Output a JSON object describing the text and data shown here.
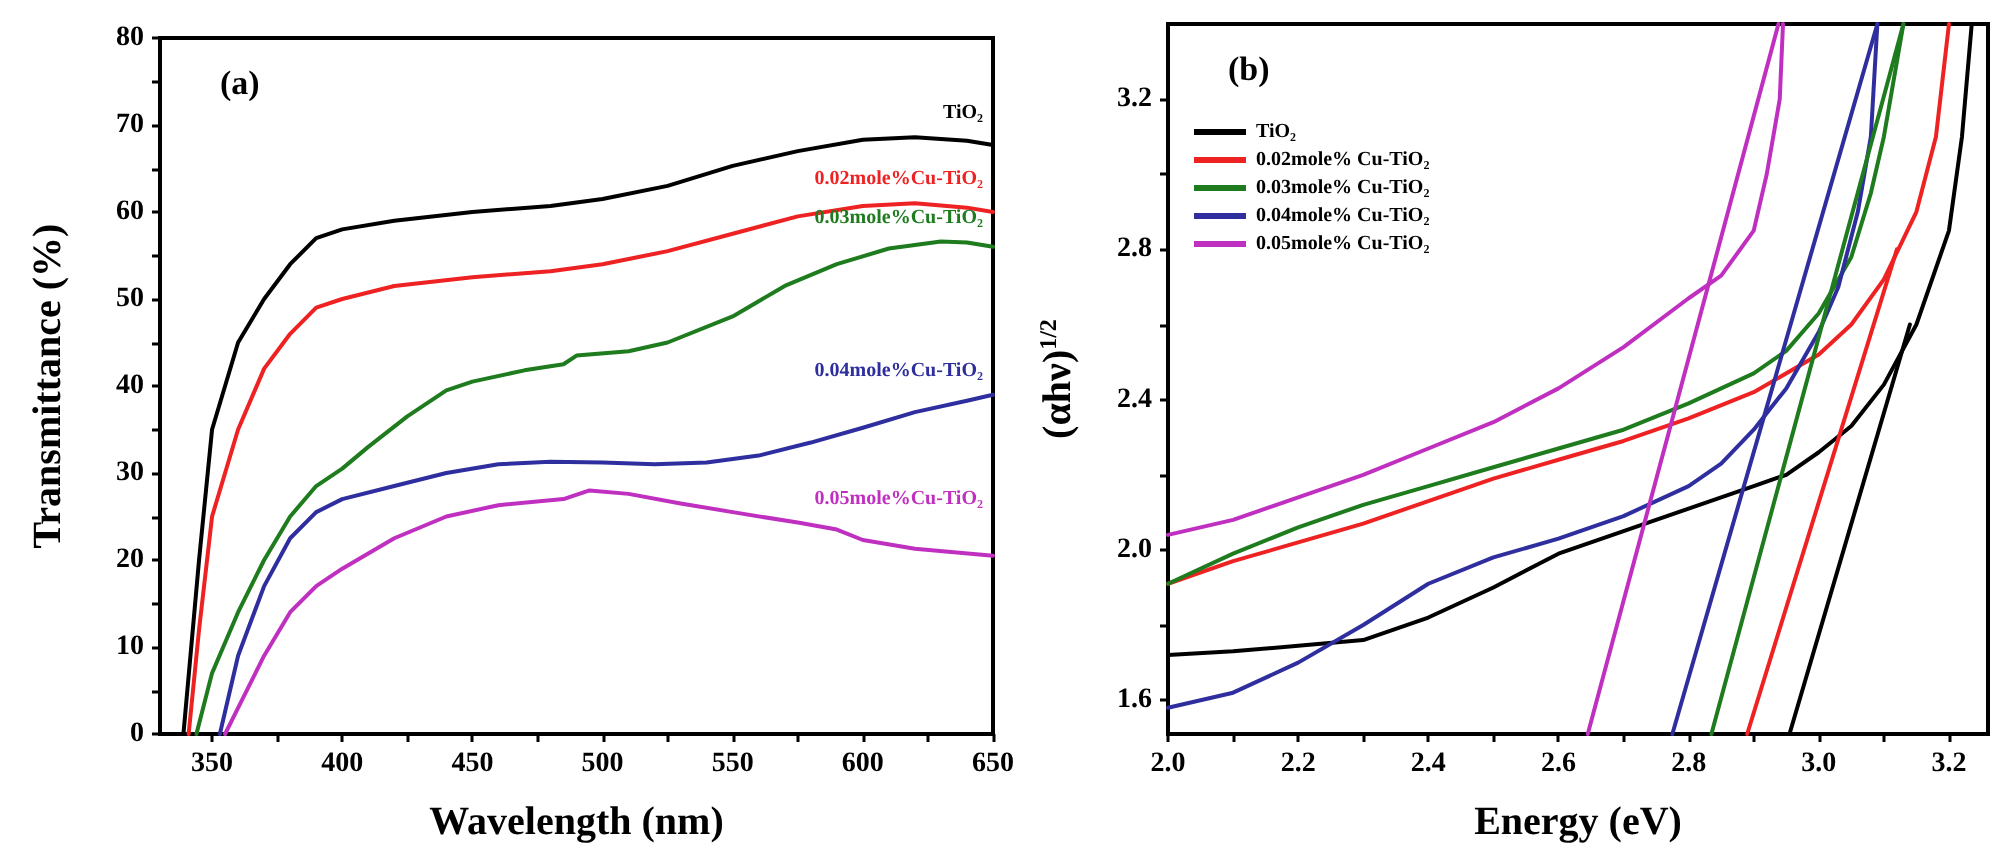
{
  "chart_data": [
    {
      "type": "line",
      "xlabel": "Wavelength (nm)",
      "ylabel": "Transmittance (%)",
      "annotations": [
        "(a)"
      ],
      "legend": false,
      "grid": false,
      "xlim": [
        330,
        650
      ],
      "xticks": [
        350,
        {
          "value": 375,
          "label": null
        },
        400,
        {
          "value": 425,
          "label": null
        },
        450,
        {
          "value": 475,
          "label": null
        },
        500,
        {
          "value": 525,
          "label": null
        },
        550,
        {
          "value": 575,
          "label": null
        },
        600,
        {
          "value": 625,
          "label": null
        },
        650
      ],
      "ylim": [
        0,
        80
      ],
      "yticks": [
        0,
        {
          "value": 5,
          "label": null
        },
        10,
        {
          "value": 15,
          "label": null
        },
        20,
        {
          "value": 25,
          "label": null
        },
        30,
        {
          "value": 35,
          "label": null
        },
        40,
        {
          "value": 45,
          "label": null
        },
        50,
        {
          "value": 55,
          "label": null
        },
        60,
        {
          "value": 65,
          "label": null
        },
        70,
        {
          "value": 75,
          "label": null
        },
        80
      ],
      "series": [
        {
          "name": "TiO₂",
          "color": "#000000",
          "x": [
            339,
            345,
            350,
            360,
            370,
            380,
            390,
            400,
            420,
            450,
            480,
            500,
            525,
            550,
            575,
            600,
            620,
            640,
            650
          ],
          "values": [
            0,
            20,
            35,
            45,
            50,
            54,
            57,
            58,
            59,
            60,
            60.7,
            61.5,
            63,
            65.3,
            67,
            68.3,
            68.6,
            68.2,
            67.7
          ]
        },
        {
          "name": "0.02mole%Cu-TiO₂",
          "color": "#ee2222",
          "x": [
            341,
            345,
            350,
            360,
            370,
            380,
            390,
            400,
            420,
            450,
            480,
            500,
            525,
            550,
            575,
            600,
            620,
            640,
            650
          ],
          "values": [
            0,
            12,
            25,
            35,
            42,
            46,
            49,
            50,
            51.5,
            52.5,
            53.2,
            54,
            55.5,
            57.5,
            59.5,
            60.7,
            61,
            60.5,
            60
          ]
        },
        {
          "name": "0.03mole%Cu-TiO₂",
          "color": "#1e7b1e",
          "x": [
            344,
            350,
            360,
            370,
            380,
            390,
            400,
            410,
            425,
            440,
            450,
            470,
            485,
            490,
            510,
            525,
            550,
            570,
            590,
            610,
            630,
            640,
            650
          ],
          "values": [
            0,
            7,
            14,
            20,
            25,
            28.5,
            30.5,
            33,
            36.5,
            39.5,
            40.5,
            41.8,
            42.5,
            43.5,
            44,
            45,
            48,
            51.5,
            54,
            55.8,
            56.6,
            56.5,
            56
          ]
        },
        {
          "name": "0.04mole%Cu-TiO₂",
          "color": "#2e2e9e",
          "x": [
            353,
            360,
            370,
            380,
            390,
            400,
            420,
            440,
            460,
            480,
            500,
            520,
            540,
            560,
            580,
            600,
            620,
            640,
            650
          ],
          "values": [
            0,
            9,
            17,
            22.5,
            25.5,
            27,
            28.5,
            30,
            31,
            31.3,
            31.2,
            31,
            31.2,
            32,
            33.5,
            35.2,
            37,
            38.3,
            39
          ]
        },
        {
          "name": "0.05mole%Cu-TiO₂",
          "color": "#c030c0",
          "x": [
            355,
            360,
            370,
            380,
            390,
            400,
            420,
            440,
            460,
            485,
            495,
            510,
            530,
            550,
            575,
            590,
            600,
            620,
            650
          ],
          "values": [
            0,
            3,
            9,
            14,
            17,
            19,
            22.5,
            25,
            26.3,
            27,
            28,
            27.6,
            26.5,
            25.5,
            24.3,
            23.5,
            22.3,
            21.3,
            20.5
          ]
        }
      ]
    },
    {
      "type": "line",
      "xlabel": "Energy (eV)",
      "ylabel": "(αhν)$^{1/2}$",
      "annotations": [
        "(b)"
      ],
      "legend": "top left",
      "grid": false,
      "xlim": [
        2.0,
        3.26
      ],
      "xticks": [
        {
          "value": 2.0,
          "label": "2.0"
        },
        {
          "value": 2.1,
          "label": null
        },
        2.2,
        {
          "value": 2.3,
          "label": null
        },
        2.4,
        {
          "value": 2.5,
          "label": null
        },
        2.6,
        {
          "value": 2.7,
          "label": null
        },
        2.8,
        {
          "value": 2.9,
          "label": null
        },
        {
          "value": 3.0,
          "label": "3.0"
        },
        {
          "value": 3.1,
          "label": null
        },
        3.2
      ],
      "ylim": [
        1.51,
        3.4
      ],
      "yticks": [
        1.6,
        {
          "value": 1.8,
          "label": null
        },
        {
          "value": 2.0,
          "label": "2.0"
        },
        {
          "value": 2.2,
          "label": null
        },
        2.4,
        {
          "value": 2.6,
          "label": null
        },
        2.8,
        {
          "value": 3.0,
          "label": null
        },
        3.2
      ],
      "series": [
        {
          "name": "TiO₂",
          "color": "#000000",
          "x": [
            2.0,
            2.1,
            2.2,
            2.3,
            2.4,
            2.5,
            2.6,
            2.7,
            2.8,
            2.9,
            2.95,
            3.0,
            3.05,
            3.1,
            3.15,
            3.2,
            3.22,
            3.235
          ],
          "values": [
            1.72,
            1.73,
            1.745,
            1.76,
            1.82,
            1.9,
            1.99,
            2.05,
            2.11,
            2.17,
            2.2,
            2.26,
            2.33,
            2.44,
            2.6,
            2.85,
            3.1,
            3.4
          ]
        },
        {
          "name": "0.02mole% Cu-TiO₂",
          "color": "#ee2222",
          "x": [
            2.0,
            2.1,
            2.2,
            2.3,
            2.4,
            2.5,
            2.6,
            2.7,
            2.8,
            2.9,
            3.0,
            3.05,
            3.1,
            3.15,
            3.18,
            3.2
          ],
          "values": [
            1.91,
            1.97,
            2.02,
            2.07,
            2.13,
            2.19,
            2.24,
            2.29,
            2.35,
            2.42,
            2.52,
            2.6,
            2.72,
            2.9,
            3.1,
            3.4
          ]
        },
        {
          "name": "0.03mole% Cu-TiO₂",
          "color": "#1e7b1e",
          "x": [
            2.0,
            2.1,
            2.2,
            2.3,
            2.4,
            2.5,
            2.6,
            2.7,
            2.8,
            2.9,
            2.95,
            3.0,
            3.05,
            3.08,
            3.1,
            3.12,
            3.13
          ],
          "values": [
            1.91,
            1.99,
            2.06,
            2.12,
            2.17,
            2.22,
            2.27,
            2.32,
            2.39,
            2.47,
            2.53,
            2.63,
            2.78,
            2.95,
            3.1,
            3.3,
            3.4
          ]
        },
        {
          "name": "0.04mole% Cu-TiO₂",
          "color": "#2e2e9e",
          "x": [
            2.0,
            2.1,
            2.2,
            2.3,
            2.4,
            2.5,
            2.6,
            2.7,
            2.8,
            2.85,
            2.9,
            2.95,
            3.0,
            3.03,
            3.06,
            3.08,
            3.09
          ],
          "values": [
            1.58,
            1.62,
            1.7,
            1.8,
            1.91,
            1.98,
            2.03,
            2.09,
            2.17,
            2.23,
            2.32,
            2.43,
            2.58,
            2.7,
            2.9,
            3.1,
            3.4
          ]
        },
        {
          "name": "0.05mole% Cu-TiO₂",
          "color": "#c030c0",
          "x": [
            2.0,
            2.1,
            2.2,
            2.3,
            2.4,
            2.5,
            2.6,
            2.7,
            2.8,
            2.85,
            2.9,
            2.92,
            2.94,
            2.945
          ],
          "values": [
            2.04,
            2.08,
            2.14,
            2.2,
            2.27,
            2.34,
            2.43,
            2.54,
            2.67,
            2.73,
            2.85,
            3.0,
            3.2,
            3.4
          ]
        },
        {
          "color": "#000000",
          "x": [
            2.955,
            3.14
          ],
          "values": [
            1.51,
            2.6
          ]
        },
        {
          "color": "#ee2222",
          "x": [
            2.89,
            3.12
          ],
          "values": [
            1.51,
            2.8
          ]
        },
        {
          "color": "#1e7b1e",
          "x": [
            2.835,
            3.13
          ],
          "values": [
            1.51,
            3.4
          ]
        },
        {
          "color": "#2e2e9e",
          "x": [
            2.775,
            3.09
          ],
          "values": [
            1.51,
            3.4
          ]
        },
        {
          "color": "#c030c0",
          "x": [
            2.645,
            2.938
          ],
          "values": [
            1.51,
            3.4
          ]
        }
      ]
    }
  ]
}
